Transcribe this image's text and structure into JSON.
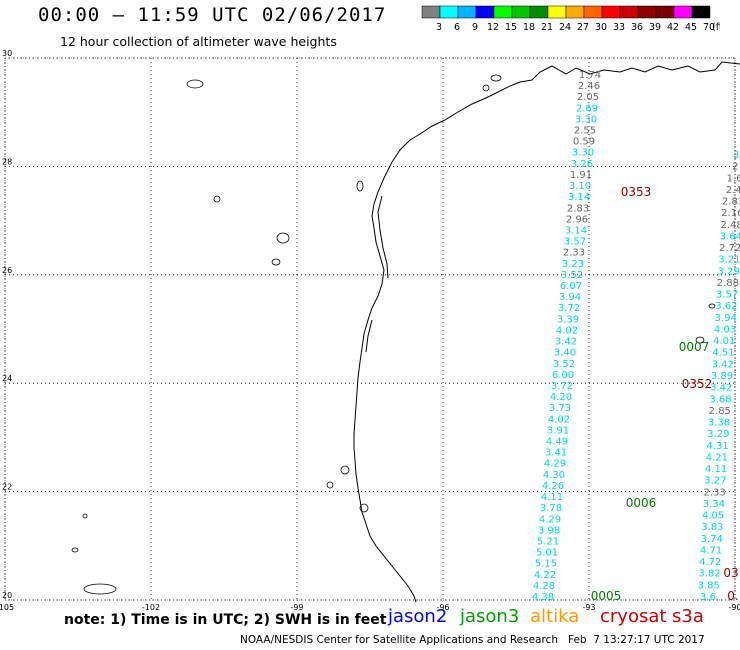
{
  "header": {
    "title": "00:00 — 11:59 UTC 02/06/2017",
    "subtitle": "12 hour collection of altimeter wave heights"
  },
  "colorbar": {
    "swatches": [
      "#808080",
      "#00ffff",
      "#00b4ff",
      "#0000ff",
      "#00ff00",
      "#00c800",
      "#008c00",
      "#ffff00",
      "#ffaa00",
      "#ff6400",
      "#ff0000",
      "#c80000",
      "#8c0000",
      "#780000",
      "#ff00ff",
      "#000000"
    ],
    "labels": [
      "3",
      "6",
      "9",
      "12",
      "15",
      "18",
      "21",
      "24",
      "27",
      "30",
      "33",
      "36",
      "39",
      "42",
      "45",
      "70"
    ],
    "unit": "(ft)"
  },
  "map": {
    "lat_labels": [
      "30",
      "28",
      "26",
      "24",
      "22",
      "20"
    ],
    "lon_labels": [
      "-105",
      "-102",
      "-99",
      "-96",
      "-93",
      "-90"
    ],
    "lat_values": [
      30,
      28,
      26,
      24,
      22,
      20
    ],
    "lon_values": [
      -105,
      -102,
      -99,
      -96,
      -93,
      -90
    ]
  },
  "tracks": {
    "left_values": [
      "1.74",
      "2.46",
      "2.05",
      "2.69",
      "3.30",
      "2.55",
      "0.59",
      "3.30",
      "3.26",
      "1.91",
      "3.10",
      "3.14",
      "2.83",
      "2.96",
      "3.14",
      "3.57",
      "2.33",
      "3.23",
      "3.52",
      "6.07",
      "3.94",
      "3.72",
      "3.39",
      "4.02",
      "3.42",
      "3.40",
      "3.52",
      "6.00",
      "3.72",
      "4.20",
      "3.73",
      "4.02",
      "3.91",
      "4.49",
      "3.41",
      "4.29",
      "4.30",
      "4.26",
      "4.11",
      "3.78",
      "4.29",
      "3.98",
      "5.21",
      "5.01",
      "5.15",
      "4.22",
      "4.28",
      "4.38"
    ],
    "left_colors": [
      "g",
      "g",
      "g",
      "c",
      "c",
      "g",
      "g",
      "c",
      "c",
      "g",
      "c",
      "c",
      "g",
      "g",
      "c",
      "c",
      "g",
      "c",
      "c",
      "c",
      "c",
      "c",
      "c",
      "c",
      "c",
      "c",
      "c",
      "c",
      "c",
      "c",
      "c",
      "c",
      "c",
      "c",
      "c",
      "c",
      "c",
      "c",
      "c",
      "c",
      "c",
      "c",
      "c",
      "c",
      "c",
      "c",
      "c",
      "c"
    ],
    "right_values": [
      "3",
      "2",
      "1.6",
      "2.4",
      "2.83",
      "2.16",
      "2.48",
      "3.64",
      "2.72",
      "3.21",
      "3.29",
      "2.88",
      "3.57",
      "3.62",
      "3.94",
      "4.03",
      "4.01",
      "4.51",
      "3.42",
      "3.89",
      "3.42",
      "3.68",
      "2.85",
      "3.38",
      "3.29",
      "4.31",
      "4.21",
      "4.11",
      "3.27",
      "2.33",
      "3.34",
      "4.05",
      "3.83",
      "3.74",
      "4.71",
      "4.72",
      "3.82",
      "3.85",
      "3.6"
    ],
    "right_colors": [
      "c",
      "g",
      "g",
      "g",
      "g",
      "g",
      "g",
      "c",
      "g",
      "c",
      "c",
      "g",
      "c",
      "c",
      "c",
      "c",
      "c",
      "c",
      "c",
      "c",
      "c",
      "c",
      "g",
      "c",
      "c",
      "c",
      "c",
      "c",
      "c",
      "g",
      "c",
      "c",
      "c",
      "c",
      "c",
      "c",
      "c",
      "c",
      "c"
    ],
    "labels": [
      {
        "text": "0353",
        "color": "#8b0000"
      },
      {
        "text": "0007",
        "color": "#008000"
      },
      {
        "text": "0352",
        "color": "#8b0000"
      },
      {
        "text": "0006",
        "color": "#008000"
      },
      {
        "text": "0005",
        "color": "#008000"
      },
      {
        "text": "03",
        "color": "#8b0000"
      },
      {
        "text": "0.",
        "color": "#8b0000"
      }
    ]
  },
  "footer": {
    "note": "note: 1) Time is in UTC; 2) SWH is in feet",
    "satellites": [
      {
        "name": "jason2",
        "color": "#0000ff"
      },
      {
        "name": "jason3",
        "color": "#00a000"
      },
      {
        "name": "altika",
        "color": "#ff9900"
      },
      {
        "name": "cryosat",
        "color": "#cc0000"
      },
      {
        "name": "s3a",
        "color": "#cc0000"
      }
    ],
    "credit": "NOAA/NESDIS Center for Satellite Applications and Research   Feb  7 13:27:17 UTC 2017"
  }
}
